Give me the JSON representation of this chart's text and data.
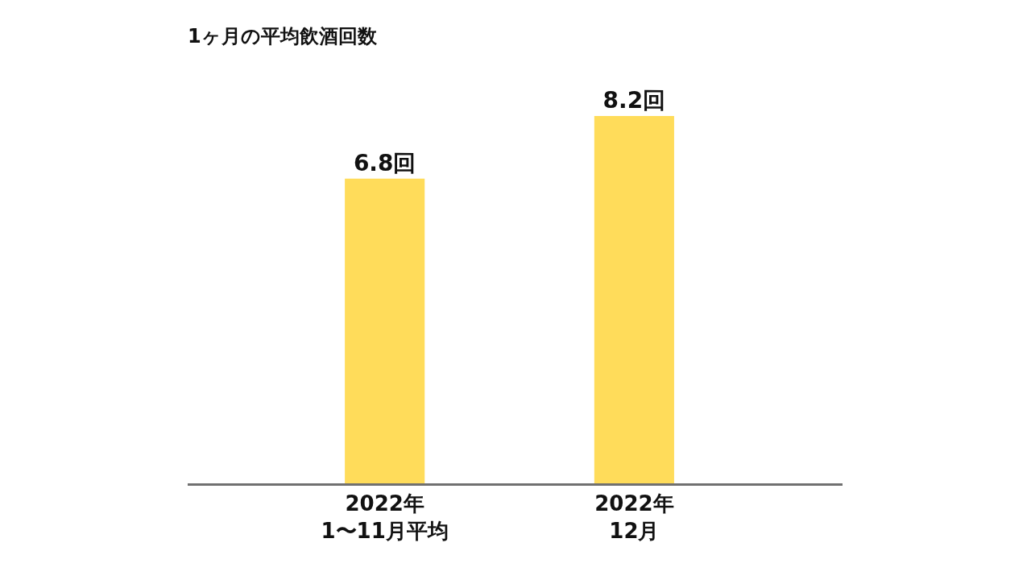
{
  "chart_data": {
    "type": "bar",
    "title": "1ヶ月の平均飲酒回数",
    "categories": [
      "2022年\n1〜11月平均",
      "2022年\n12月"
    ],
    "values": [
      6.8,
      8.2
    ],
    "value_labels": [
      "6.8回",
      "8.2回"
    ],
    "color": "#ffdc5a"
  }
}
